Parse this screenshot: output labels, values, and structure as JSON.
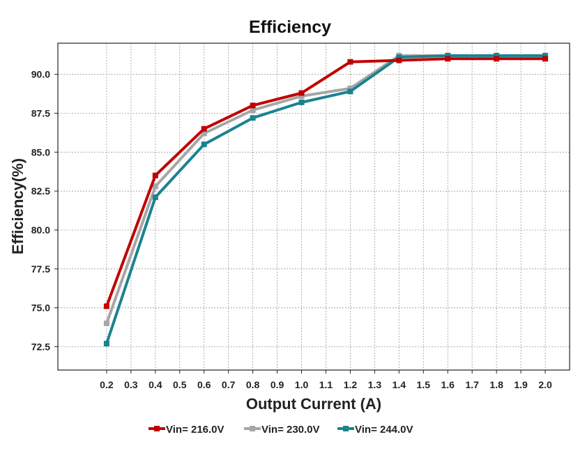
{
  "chart_data": {
    "type": "line",
    "title": "Efficiency",
    "xlabel": "Output Current (A)",
    "ylabel": "Efficiency(%)",
    "xlim": [
      0.0,
      2.1
    ],
    "ylim": [
      71.0,
      92.0
    ],
    "xticks": [
      0.2,
      0.3,
      0.4,
      0.5,
      0.6,
      0.7,
      0.8,
      0.9,
      1.0,
      1.1,
      1.2,
      1.3,
      1.4,
      1.5,
      1.6,
      1.7,
      1.8,
      1.9,
      2.0
    ],
    "xtick_labels": [
      "0.2",
      "0.3",
      "0.4",
      "0.5",
      "0.6",
      "0.7",
      "0.8",
      "0.9",
      "1.0",
      "1.1",
      "1.2",
      "1.3",
      "1.4",
      "1.5",
      "1.6",
      "1.7",
      "1.8",
      "1.9",
      "2.0"
    ],
    "yticks": [
      72.5,
      75.0,
      77.5,
      80.0,
      82.5,
      85.0,
      87.5,
      90.0
    ],
    "ytick_labels": [
      "72.5",
      "75.0",
      "77.5",
      "80.0",
      "82.5",
      "85.0",
      "87.5",
      "90.0"
    ],
    "grid": true,
    "legend_position": "bottom",
    "series": [
      {
        "name": "Vin= 230.0V",
        "color": "#a6a6a6",
        "x": [
          0.2,
          0.4,
          0.6,
          0.8,
          1.0,
          1.2,
          1.4,
          1.6,
          1.8,
          2.0
        ],
        "values": [
          74.0,
          82.8,
          86.2,
          87.7,
          88.6,
          89.1,
          91.2,
          91.2,
          91.2,
          91.2
        ]
      },
      {
        "name": "Vin= 244.0V",
        "color": "#1a8390",
        "x": [
          0.2,
          0.4,
          0.6,
          0.8,
          1.0,
          1.2,
          1.4,
          1.6,
          1.8,
          2.0
        ],
        "values": [
          72.7,
          82.1,
          85.5,
          87.2,
          88.2,
          88.9,
          91.1,
          91.2,
          91.2,
          91.2
        ]
      },
      {
        "name": "Vin= 216.0V",
        "color": "#c00000",
        "x": [
          0.2,
          0.4,
          0.6,
          0.8,
          1.0,
          1.2,
          1.4,
          1.6,
          1.8,
          2.0
        ],
        "values": [
          75.1,
          83.5,
          86.5,
          88.0,
          88.8,
          90.8,
          90.9,
          91.0,
          91.0,
          91.0
        ]
      }
    ],
    "legend_order": [
      "Vin= 216.0V",
      "Vin= 230.0V",
      "Vin= 244.0V"
    ]
  }
}
